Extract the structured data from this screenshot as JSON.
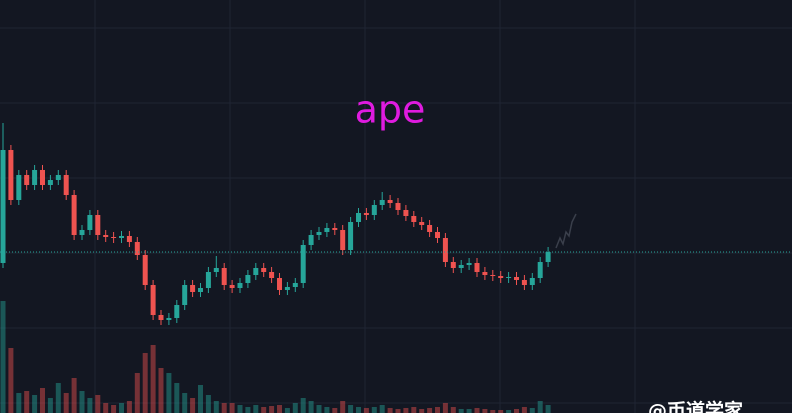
{
  "chart_data": {
    "type": "candlestick",
    "title": "ape",
    "watermark": "@币道学家",
    "up_color": "#26a69a",
    "down_color": "#ef5350",
    "title_color": "#e01be0",
    "ylim": [
      0,
      413
    ],
    "open": [
      150,
      263,
      213,
      238,
      228,
      243,
      228,
      233,
      238,
      218,
      178,
      183,
      198,
      178,
      176,
      175,
      177,
      171,
      158,
      128,
      98,
      93,
      95,
      108,
      128,
      121,
      125,
      141,
      145,
      128,
      125,
      130,
      138,
      145,
      141,
      135,
      123,
      126,
      130,
      168,
      178,
      181,
      185,
      183,
      163,
      191,
      200,
      198,
      208,
      213,
      210,
      203,
      197,
      191,
      188,
      181,
      175,
      151,
      145,
      148,
      150,
      141,
      138,
      137,
      135,
      136,
      133,
      128,
      135,
      151
    ],
    "high": [
      290,
      268,
      243,
      243,
      248,
      248,
      238,
      243,
      243,
      223,
      188,
      203,
      203,
      183,
      181,
      182,
      182,
      176,
      163,
      133,
      103,
      100,
      113,
      133,
      133,
      130,
      146,
      157,
      150,
      133,
      135,
      143,
      150,
      150,
      146,
      140,
      131,
      135,
      173,
      183,
      186,
      190,
      190,
      188,
      196,
      205,
      205,
      213,
      221,
      218,
      215,
      208,
      202,
      196,
      193,
      186,
      180,
      156,
      153,
      155,
      155,
      146,
      143,
      142,
      141,
      141,
      138,
      140,
      156,
      166
    ],
    "low": [
      145,
      208,
      208,
      223,
      223,
      223,
      223,
      228,
      213,
      173,
      173,
      178,
      173,
      171,
      170,
      170,
      166,
      153,
      123,
      93,
      88,
      88,
      90,
      103,
      116,
      116,
      120,
      136,
      123,
      120,
      120,
      125,
      133,
      136,
      130,
      118,
      118,
      121,
      125,
      163,
      173,
      176,
      178,
      158,
      158,
      186,
      193,
      193,
      203,
      205,
      198,
      192,
      186,
      183,
      176,
      170,
      146,
      140,
      140,
      143,
      136,
      133,
      132,
      130,
      130,
      128,
      123,
      123,
      130,
      146
    ],
    "close": [
      263,
      213,
      238,
      228,
      243,
      228,
      233,
      238,
      218,
      178,
      183,
      198,
      178,
      176,
      175,
      177,
      171,
      158,
      128,
      98,
      93,
      95,
      108,
      128,
      121,
      125,
      141,
      145,
      128,
      125,
      130,
      138,
      145,
      141,
      135,
      123,
      126,
      130,
      168,
      178,
      181,
      185,
      183,
      163,
      191,
      200,
      198,
      208,
      213,
      210,
      203,
      197,
      191,
      188,
      181,
      175,
      151,
      145,
      148,
      150,
      141,
      138,
      137,
      135,
      136,
      133,
      128,
      135,
      151,
      161
    ],
    "volume": [
      112,
      65,
      20,
      22,
      18,
      25,
      15,
      30,
      20,
      35,
      22,
      15,
      18,
      10,
      8,
      10,
      12,
      40,
      60,
      68,
      45,
      40,
      30,
      20,
      15,
      28,
      18,
      12,
      10,
      10,
      8,
      6,
      8,
      6,
      7,
      8,
      5,
      10,
      15,
      12,
      8,
      6,
      5,
      12,
      8,
      6,
      5,
      6,
      8,
      5,
      4,
      5,
      6,
      4,
      5,
      6,
      10,
      6,
      4,
      4,
      5,
      4,
      3,
      3,
      3,
      4,
      6,
      5,
      12,
      8
    ]
  }
}
